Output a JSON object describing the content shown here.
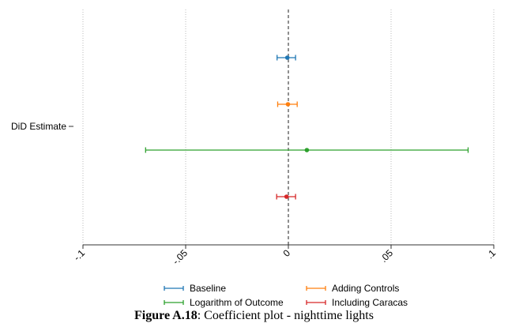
{
  "chart_data": {
    "type": "scatter",
    "orientation": "horizontal",
    "row_label": "DiD Estimate",
    "xlim": [
      -0.1,
      0.1
    ],
    "x_ticks": [
      -0.1,
      -0.05,
      0,
      0.05,
      0.1
    ],
    "x_tick_labels": [
      "-.1",
      "-.05",
      "0",
      ".05",
      ".1"
    ],
    "grid": "vertical dotted",
    "reference_line": 0,
    "series": [
      {
        "name": "Baseline",
        "estimate": -0.0005,
        "ci": [
          -0.0055,
          0.0035
        ],
        "color": "#1f77b4"
      },
      {
        "name": "Adding Controls",
        "estimate": -0.0002,
        "ci": [
          -0.0052,
          0.0043
        ],
        "color": "#ff7f0e"
      },
      {
        "name": "Logarithm of Outcome",
        "estimate": 0.009,
        "ci": [
          -0.0695,
          0.0875
        ],
        "color": "#2ca02c"
      },
      {
        "name": "Including Caracas",
        "estimate": -0.0009,
        "ci": [
          -0.0057,
          0.0035
        ],
        "color": "#d62728"
      }
    ],
    "legend_position": "bottom"
  },
  "caption": {
    "label": "Figure A.18",
    "text": ": Coefficient plot - nighttime lights"
  }
}
